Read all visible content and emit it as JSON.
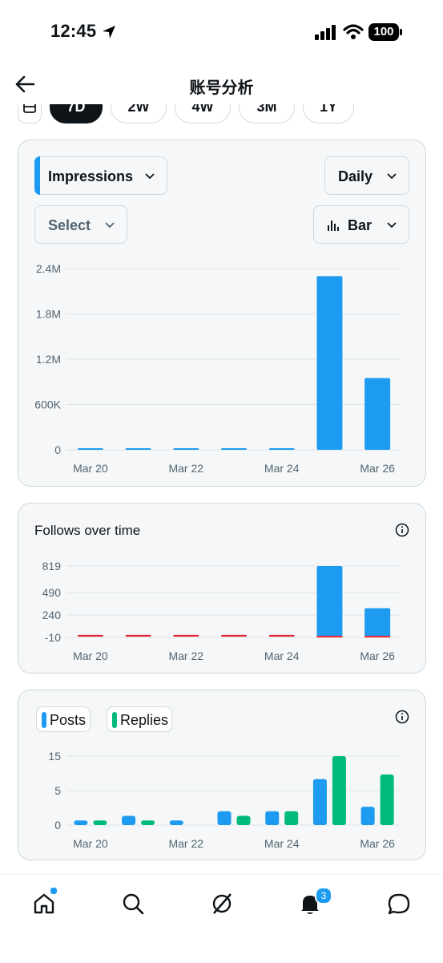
{
  "status": {
    "time": "12:45",
    "battery": "100"
  },
  "header": {
    "title": "账号分析"
  },
  "ranges": [
    "7D",
    "2W",
    "4W",
    "3M",
    "1Y"
  ],
  "impressions_card": {
    "metric": "Impressions",
    "interval": "Daily",
    "compare": "Select",
    "chart_kind": "Bar",
    "chart_data": {
      "type": "bar",
      "categories": [
        "Mar 20",
        "Mar 21",
        "Mar 22",
        "Mar 23",
        "Mar 24",
        "Mar 25",
        "Mar 26"
      ],
      "x_tick_labels": [
        "Mar 20",
        "Mar 22",
        "Mar 24",
        "Mar 26"
      ],
      "values": [
        8000,
        6000,
        5000,
        6000,
        20000,
        2300000,
        950000
      ],
      "y_ticks": [
        "2.4M",
        "1.8M",
        "1.2M",
        "600K",
        "0"
      ],
      "ylim": [
        0,
        2400000
      ],
      "color": "#1d9bf0"
    }
  },
  "follows_card": {
    "title": "Follows over time",
    "chart_data": {
      "type": "bar",
      "categories": [
        "Mar 20",
        "Mar 21",
        "Mar 22",
        "Mar 23",
        "Mar 24",
        "Mar 25",
        "Mar 26"
      ],
      "x_tick_labels": [
        "Mar 20",
        "Mar 22",
        "Mar 24",
        "Mar 26"
      ],
      "y_ticks": [
        "819",
        "490",
        "240",
        "-10"
      ],
      "ylim": [
        -10,
        819
      ],
      "series": [
        {
          "values": [
            0,
            2,
            0,
            1,
            1,
            819,
            330
          ],
          "color": "#1d9bf0"
        },
        {
          "values": [
            0,
            0,
            0,
            0,
            0,
            -4,
            -2
          ],
          "color": "#f4212e"
        }
      ]
    }
  },
  "posts_card": {
    "legend": [
      {
        "label": "Posts",
        "color": "#1d9bf0"
      },
      {
        "label": "Replies",
        "color": "#00ba7c"
      }
    ],
    "chart_data": {
      "type": "bar",
      "categories": [
        "Mar 20",
        "Mar 21",
        "Mar 22",
        "Mar 23",
        "Mar 24",
        "Mar 25",
        "Mar 26"
      ],
      "x_tick_labels": [
        "Mar 20",
        "Mar 22",
        "Mar 24",
        "Mar 26"
      ],
      "y_ticks": [
        "15",
        "5",
        "0"
      ],
      "ylim": [
        0,
        15
      ],
      "series": [
        {
          "name": "Posts",
          "values": [
            1,
            2,
            1,
            3,
            3,
            10,
            4
          ],
          "color": "#1d9bf0"
        },
        {
          "name": "Replies",
          "values": [
            1,
            1,
            0,
            2,
            3,
            15,
            11
          ],
          "color": "#00ba7c"
        }
      ]
    }
  },
  "nav": {
    "notifications_badge": "3"
  }
}
